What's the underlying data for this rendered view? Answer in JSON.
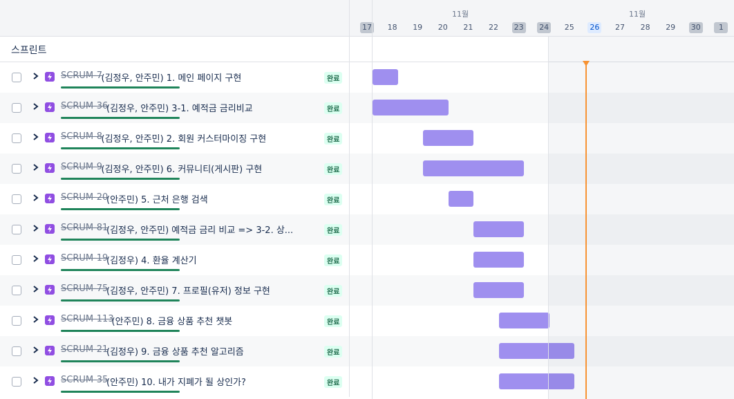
{
  "timeline": {
    "months": [
      "11월",
      "11월"
    ],
    "days": [
      "17",
      "18",
      "19",
      "20",
      "21",
      "22",
      "23",
      "24",
      "25",
      "26",
      "27",
      "28",
      "29",
      "30",
      "1"
    ],
    "weekend_indices": [
      0,
      6,
      7,
      13,
      14
    ],
    "today_index": 9
  },
  "sprint_title": "스프린트",
  "status_label": "완료",
  "rows": [
    {
      "key": "SCRUM-7",
      "summary": "(김정우, 안주민) 1. 메인 페이지 구현",
      "start": 1,
      "span": 1
    },
    {
      "key": "SCRUM-36",
      "summary": "(김정우, 안주민) 3-1. 예적금 금리비교",
      "start": 1,
      "span": 3
    },
    {
      "key": "SCRUM-8",
      "summary": "(김정우, 안주민) 2. 회원 커스터마이징 구현",
      "start": 3,
      "span": 2
    },
    {
      "key": "SCRUM-9",
      "summary": "(김정우, 안주민) 6. 커뮤니티(게시판) 구현",
      "start": 3,
      "span": 4
    },
    {
      "key": "SCRUM-20",
      "summary": "(안주민) 5. 근처 은행 검색",
      "start": 4,
      "span": 1
    },
    {
      "key": "SCRUM-81",
      "summary": "(김정우, 안주민) 예적금 금리 비교 => 3-2. 상...",
      "start": 5,
      "span": 2
    },
    {
      "key": "SCRUM-19",
      "summary": "(김정우) 4. 환율 계산기",
      "start": 5,
      "span": 2
    },
    {
      "key": "SCRUM-75",
      "summary": "(김정우, 안주민) 7. 프로필(유저) 정보 구현",
      "start": 5,
      "span": 2
    },
    {
      "key": "SCRUM-113",
      "summary": "(안주민) 8. 금융 상품 추천 챗봇",
      "start": 6,
      "span": 2
    },
    {
      "key": "SCRUM-21",
      "summary": "(김정우) 9. 금융 상품 추천 알고리즘",
      "start": 6,
      "span": 3
    },
    {
      "key": "SCRUM-35",
      "summary": "(안주민) 10. 내가 지폐가 될 상인가?",
      "start": 6,
      "span": 3
    }
  ]
}
